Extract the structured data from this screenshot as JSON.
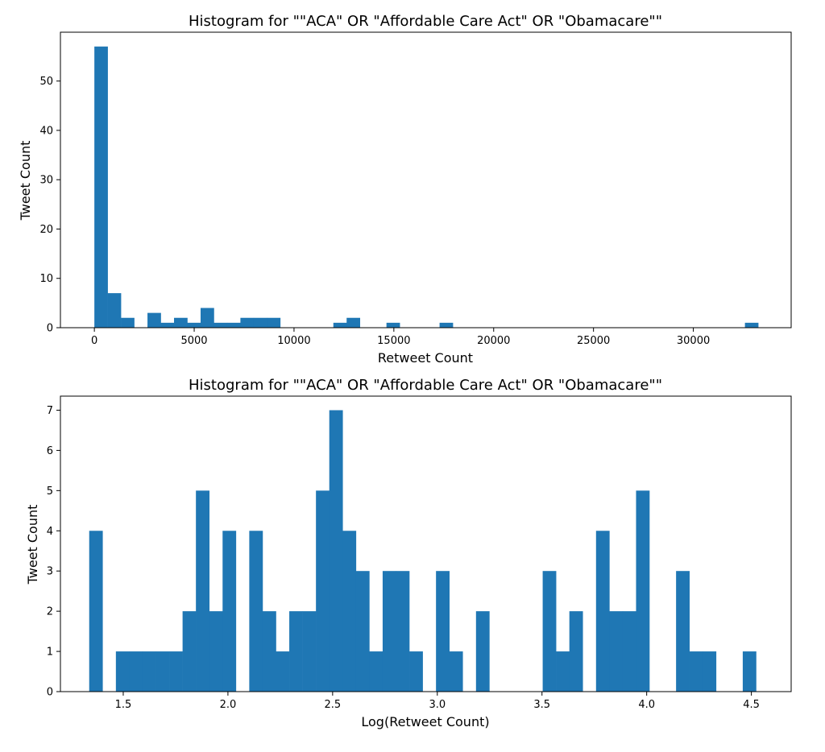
{
  "chart_data": [
    {
      "type": "bar",
      "title": "Histogram for \"\"ACA\" OR \"Affordable Care Act\" OR \"Obamacare\"\"",
      "xlabel": "Retweet Count",
      "ylabel": "Tweet Count",
      "xlim": [
        -1700,
        34900
      ],
      "ylim": [
        0,
        59.9
      ],
      "xticks": [
        0,
        5000,
        10000,
        15000,
        20000,
        25000,
        30000
      ],
      "yticks": [
        0,
        10,
        20,
        30,
        40,
        50
      ],
      "grid": false,
      "bar_color": "#1f77b4",
      "bins": {
        "start": 0,
        "width": 665
      },
      "values": [
        57,
        7,
        2,
        0,
        3,
        1,
        2,
        1,
        4,
        1,
        1,
        2,
        2,
        2,
        0,
        0,
        0,
        0,
        1,
        2,
        0,
        0,
        1,
        0,
        0,
        0,
        1,
        0,
        0,
        0,
        0,
        0,
        0,
        0,
        0,
        0,
        0,
        0,
        0,
        0,
        0,
        0,
        0,
        0,
        0,
        0,
        0,
        0,
        0,
        1
      ]
    },
    {
      "type": "bar",
      "title": "Histogram for \"\"ACA\" OR \"Affordable Care Act\" OR \"Obamacare\"\"",
      "xlabel": "Log(Retweet Count)",
      "ylabel": "Tweet Count",
      "xlim": [
        1.2,
        4.69
      ],
      "ylim": [
        0,
        7.35
      ],
      "xticks": [
        1.5,
        2.0,
        2.5,
        3.0,
        3.5,
        4.0,
        4.5
      ],
      "yticks": [
        0,
        1,
        2,
        3,
        4,
        5,
        6,
        7
      ],
      "grid": false,
      "bar_color": "#1f77b4",
      "bins": {
        "start": 1.3375,
        "width": 0.0637
      },
      "values": [
        4,
        0,
        1,
        1,
        1,
        1,
        1,
        2,
        5,
        2,
        4,
        0,
        4,
        2,
        1,
        2,
        2,
        5,
        7,
        4,
        3,
        1,
        3,
        3,
        1,
        0,
        3,
        1,
        0,
        2,
        0,
        0,
        0,
        0,
        3,
        1,
        2,
        0,
        4,
        2,
        2,
        5,
        0,
        0,
        3,
        1,
        1,
        0,
        0,
        1
      ]
    }
  ]
}
